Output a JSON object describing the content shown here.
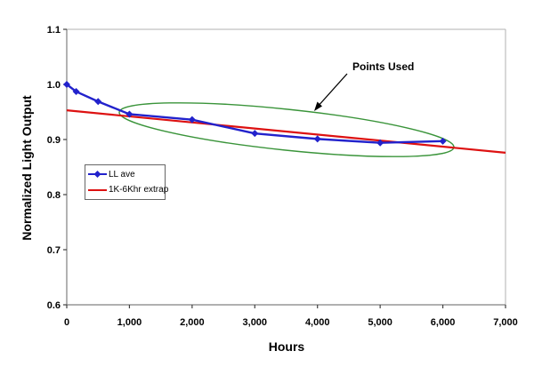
{
  "chart_data": {
    "type": "line",
    "title": "",
    "xlabel": "Hours",
    "ylabel": "Normalized Light Output",
    "xlim": [
      0,
      7000
    ],
    "ylim": [
      0.6,
      1.1
    ],
    "grid": false,
    "xticks": {
      "values": [
        0,
        1000,
        2000,
        3000,
        4000,
        5000,
        6000,
        7000
      ],
      "labels": [
        "0",
        "1,000",
        "2,000",
        "3,000",
        "4,000",
        "5,000",
        "6,000",
        "7,000"
      ]
    },
    "yticks": {
      "values": [
        1.1,
        1.0,
        0.9,
        0.8,
        0.7,
        0.6
      ],
      "labels": [
        "1.1",
        "1.0",
        "0.9",
        "0.8",
        "0.7",
        "0.6"
      ]
    },
    "series": [
      {
        "name": "LL ave",
        "type": "line-markers",
        "marker": "diamond",
        "color": "#2222cc",
        "x": [
          0,
          150,
          500,
          1000,
          2000,
          3000,
          4000,
          5000,
          6000
        ],
        "y": [
          1.0,
          0.987,
          0.969,
          0.946,
          0.936,
          0.911,
          0.901,
          0.894,
          0.897
        ]
      },
      {
        "name": "1K-6Khr extrap",
        "type": "line",
        "color": "#dd1111",
        "x": [
          0,
          7000
        ],
        "y": [
          0.953,
          0.876
        ]
      }
    ],
    "legend": {
      "position": "inside-upper-left",
      "entries": [
        "LL ave",
        "1K-6Khr extrap"
      ]
    },
    "annotation": {
      "text": "Points Used",
      "target": "ellipse circling the 1,000 to 6,000 hour points",
      "ellipse_color": "#3a943a"
    },
    "colors": {
      "axis_line": "#808080",
      "plot_border": "#b0b0b0",
      "tick": "#404040",
      "text": "#000000",
      "arrow": "#000000"
    }
  }
}
